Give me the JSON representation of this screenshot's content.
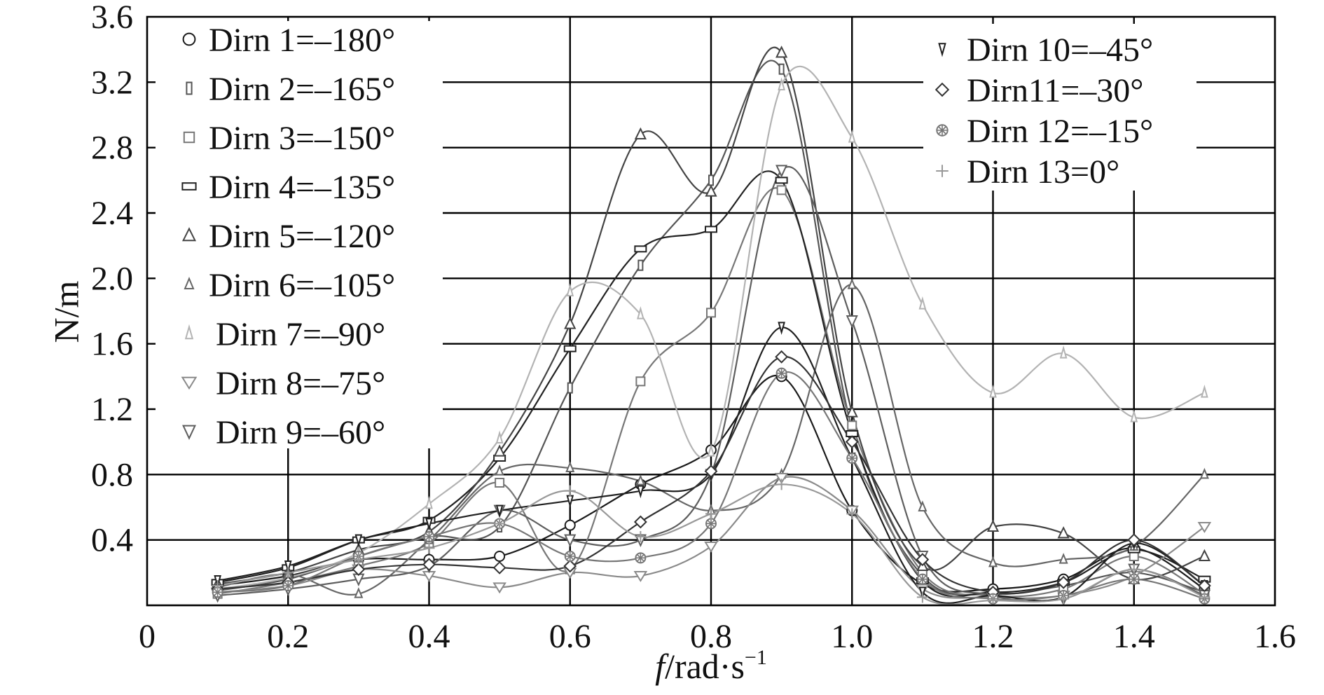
{
  "chart_data": {
    "type": "line",
    "title": "",
    "xlabel": "f/rad·s⁻¹",
    "xlabel_italic": "f",
    "xlabel_rest": "/rad·s",
    "xlabel_sup": "−1",
    "ylabel": "N/m",
    "xlim": [
      0,
      1.6
    ],
    "ylim": [
      0,
      3.6
    ],
    "x_ticks": [
      "0",
      "0.2",
      "0.4",
      "0.6",
      "0.8",
      "1.0",
      "1.2",
      "1.4",
      "1.6"
    ],
    "y_ticks": [
      "0.4",
      "0.8",
      "1.2",
      "1.6",
      "2.0",
      "2.4",
      "2.8",
      "3.2",
      "3.6"
    ],
    "x": [
      0.1,
      0.2,
      0.3,
      0.4,
      0.5,
      0.6,
      0.7,
      0.8,
      0.9,
      1.0,
      1.1,
      1.2,
      1.3,
      1.4,
      1.5
    ],
    "series": [
      {
        "name": "Dirn 1=–180°",
        "marker": "circle",
        "color": "#1a1a1a",
        "values": [
          0.12,
          0.18,
          0.28,
          0.28,
          0.3,
          0.49,
          0.74,
          0.95,
          1.4,
          0.58,
          0.13,
          0.1,
          0.16,
          0.35,
          0.1
        ]
      },
      {
        "name": "Dirn 2=–165°",
        "marker": "thin-rect",
        "color": "#555555",
        "values": [
          0.09,
          0.16,
          0.3,
          0.42,
          0.48,
          1.33,
          2.08,
          2.6,
          3.28,
          1.08,
          0.18,
          0.07,
          0.12,
          0.2,
          0.08
        ]
      },
      {
        "name": "Dirn 3=–150°",
        "marker": "square",
        "color": "#777777",
        "values": [
          0.07,
          0.14,
          0.24,
          0.38,
          0.75,
          0.22,
          1.37,
          1.79,
          2.54,
          1.1,
          0.2,
          0.06,
          0.1,
          0.3,
          0.07
        ]
      },
      {
        "name": "Dirn 4=–135°",
        "marker": "wide-rect",
        "color": "#222222",
        "values": [
          0.14,
          0.23,
          0.4,
          0.52,
          0.9,
          1.57,
          2.18,
          2.3,
          2.6,
          1.05,
          0.15,
          0.08,
          0.14,
          0.34,
          0.16
        ]
      },
      {
        "name": "Dirn 5=–120°",
        "marker": "triangle-up",
        "color": "#444444",
        "values": [
          0.13,
          0.2,
          0.34,
          0.45,
          0.94,
          1.72,
          2.88,
          2.53,
          3.38,
          1.18,
          0.24,
          0.48,
          0.44,
          0.16,
          0.3
        ]
      },
      {
        "name": "Dirn 6=–105°",
        "marker": "triangle-up-small",
        "color": "#666666",
        "values": [
          0.11,
          0.19,
          0.07,
          0.4,
          0.82,
          0.84,
          0.76,
          0.58,
          0.8,
          1.96,
          0.6,
          0.26,
          0.28,
          0.36,
          0.8
        ]
      },
      {
        "name": "Dirn 7=–90°",
        "marker": "triangle-up-light",
        "color": "#b3b3b3",
        "values": [
          0.1,
          0.17,
          0.32,
          0.62,
          1.02,
          1.92,
          1.78,
          0.94,
          3.18,
          2.86,
          1.84,
          1.3,
          1.54,
          1.15,
          1.3
        ]
      },
      {
        "name": "Dirn 8=–75°",
        "marker": "triangle-down",
        "color": "#8a8a8a",
        "values": [
          0.08,
          0.12,
          0.22,
          0.18,
          0.11,
          0.2,
          0.18,
          0.36,
          0.78,
          0.58,
          0.1,
          0.05,
          0.06,
          0.18,
          0.48
        ]
      },
      {
        "name": "Dirn 9=–60°",
        "marker": "triangle-down-large",
        "color": "#5e5e5e",
        "values": [
          0.06,
          0.1,
          0.16,
          0.24,
          0.58,
          0.4,
          0.4,
          0.8,
          2.66,
          1.74,
          0.3,
          0.06,
          0.04,
          0.22,
          0.06
        ]
      },
      {
        "name": "Dirn 10=–45°",
        "marker": "triangle-down-narrow",
        "color": "#1f1f1f",
        "values": [
          0.15,
          0.24,
          0.4,
          0.5,
          0.58,
          0.64,
          0.7,
          0.8,
          1.7,
          0.9,
          0.08,
          0.06,
          0.05,
          0.38,
          0.12
        ]
      },
      {
        "name": "Dirn11=–30°",
        "marker": "diamond",
        "color": "#333333",
        "values": [
          0.1,
          0.14,
          0.22,
          0.25,
          0.23,
          0.24,
          0.51,
          0.82,
          1.52,
          1.0,
          0.28,
          0.08,
          0.14,
          0.4,
          0.12
        ]
      },
      {
        "name": "Dirn 12=–15°",
        "marker": "starburst",
        "color": "#777777",
        "values": [
          0.08,
          0.12,
          0.3,
          0.42,
          0.5,
          0.3,
          0.29,
          0.5,
          1.42,
          0.9,
          0.16,
          0.04,
          0.06,
          0.16,
          0.04
        ]
      },
      {
        "name": "Dirn 13=0°",
        "marker": "plus",
        "color": "#999999",
        "values": [
          0.12,
          0.2,
          0.28,
          0.35,
          0.5,
          0.7,
          0.42,
          0.56,
          0.74,
          0.56,
          0.05,
          0.03,
          0.04,
          0.22,
          0.05
        ]
      }
    ],
    "legend_left": [
      "Dirn 1=–180°",
      "Dirn 2=–165°",
      "Dirn 3=–150°",
      "Dirn 4=–135°",
      "Dirn 5=–120°",
      "Dirn 6=–105°",
      "Dirn 7=–90°",
      "Dirn 8=–75°",
      "Dirn 9=–60°"
    ],
    "legend_right": [
      "Dirn 10=–45°",
      "Dirn11=–30°",
      "Dirn 12=–15°",
      "Dirn 13=0°"
    ],
    "grid": true
  }
}
